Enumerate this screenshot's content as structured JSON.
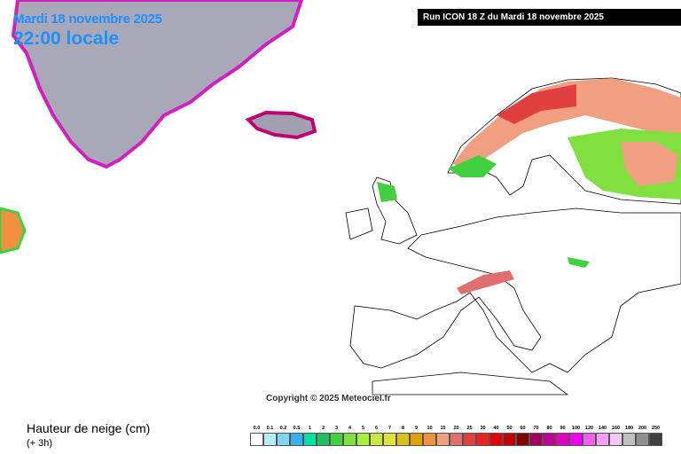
{
  "header": {
    "date": "Mardi 18 novembre 2025",
    "time": "22:00 locale",
    "run": "Run ICON 18 Z du Mardi 18 novembre 2025"
  },
  "copyright": "Copyright © 2025 Meteociel.fr",
  "legend": {
    "title": "Hauteur de neige (cm)",
    "subtitle": "(+ 3h)",
    "items": [
      {
        "label": "0.0",
        "color": "#ffffff"
      },
      {
        "label": "0.1",
        "color": "#b4ecfa"
      },
      {
        "label": "0.2",
        "color": "#82d4f8"
      },
      {
        "label": "0.5",
        "color": "#3aaef0"
      },
      {
        "label": "1",
        "color": "#00e0a0"
      },
      {
        "label": "2",
        "color": "#20c060"
      },
      {
        "label": "3",
        "color": "#40d040"
      },
      {
        "label": "4",
        "color": "#80e040"
      },
      {
        "label": "5",
        "color": "#a8f040"
      },
      {
        "label": "6",
        "color": "#c8e840"
      },
      {
        "label": "7",
        "color": "#e0e040"
      },
      {
        "label": "8",
        "color": "#d8c020"
      },
      {
        "label": "9",
        "color": "#e0a000"
      },
      {
        "label": "10",
        "color": "#f09040"
      },
      {
        "label": "15",
        "color": "#f0a080"
      },
      {
        "label": "20",
        "color": "#e07070"
      },
      {
        "label": "25",
        "color": "#e04040"
      },
      {
        "label": "30",
        "color": "#f02020"
      },
      {
        "label": "40",
        "color": "#e00000"
      },
      {
        "label": "50",
        "color": "#c00000"
      },
      {
        "label": "60",
        "color": "#800000"
      },
      {
        "label": "70",
        "color": "#a00060"
      },
      {
        "label": "80",
        "color": "#c00090"
      },
      {
        "label": "90",
        "color": "#e000c0"
      },
      {
        "label": "100",
        "color": "#f000f0"
      },
      {
        "label": "120",
        "color": "#f060f0"
      },
      {
        "label": "140",
        "color": "#f0a0f0"
      },
      {
        "label": "160",
        "color": "#f0c8f0"
      },
      {
        "label": "180",
        "color": "#c0c0c0"
      },
      {
        "label": "200",
        "color": "#909090"
      },
      {
        "label": "250",
        "color": "#404040"
      }
    ]
  }
}
